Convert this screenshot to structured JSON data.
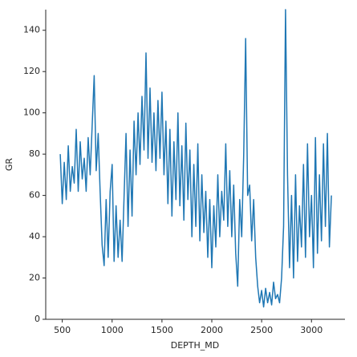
{
  "chart_data": {
    "type": "line",
    "xlabel": "DEPTH_MD",
    "ylabel": "GR",
    "xlim": [
      334,
      3336
    ],
    "ylim": [
      0,
      150
    ],
    "xticks": [
      500,
      1000,
      1500,
      2000,
      2500,
      3000
    ],
    "yticks": [
      0,
      20,
      40,
      60,
      80,
      100,
      120,
      140
    ],
    "grid": false,
    "series": [
      {
        "color": "#1f77b4",
        "x": [
          480,
          500,
          520,
          540,
          560,
          580,
          600,
          620,
          640,
          660,
          680,
          700,
          720,
          740,
          760,
          780,
          800,
          820,
          840,
          860,
          880,
          900,
          920,
          940,
          960,
          980,
          1000,
          1020,
          1040,
          1060,
          1080,
          1100,
          1120,
          1140,
          1160,
          1180,
          1200,
          1220,
          1240,
          1260,
          1280,
          1300,
          1320,
          1340,
          1360,
          1380,
          1400,
          1420,
          1440,
          1460,
          1480,
          1500,
          1520,
          1540,
          1560,
          1580,
          1600,
          1620,
          1640,
          1660,
          1680,
          1700,
          1720,
          1740,
          1760,
          1780,
          1800,
          1820,
          1840,
          1860,
          1880,
          1900,
          1920,
          1940,
          1960,
          1980,
          2000,
          2020,
          2040,
          2060,
          2080,
          2100,
          2120,
          2140,
          2160,
          2180,
          2200,
          2220,
          2240,
          2260,
          2280,
          2300,
          2320,
          2340,
          2360,
          2380,
          2400,
          2420,
          2440,
          2460,
          2480,
          2500,
          2520,
          2540,
          2560,
          2580,
          2600,
          2620,
          2640,
          2660,
          2680,
          2700,
          2720,
          2740,
          2760,
          2780,
          2800,
          2820,
          2840,
          2860,
          2880,
          2900,
          2920,
          2940,
          2960,
          2980,
          3000,
          3020,
          3040,
          3060,
          3080,
          3100,
          3120,
          3140,
          3160,
          3180,
          3200
        ],
        "values": [
          80,
          56,
          76,
          58,
          84,
          62,
          74,
          66,
          92,
          62,
          86,
          68,
          78,
          62,
          88,
          70,
          94,
          118,
          72,
          90,
          62,
          36,
          26,
          58,
          30,
          62,
          75,
          28,
          55,
          30,
          48,
          28,
          60,
          90,
          45,
          82,
          50,
          96,
          70,
          100,
          75,
          108,
          82,
          129,
          78,
          112,
          76,
          100,
          72,
          106,
          78,
          110,
          70,
          96,
          56,
          92,
          50,
          86,
          58,
          100,
          55,
          84,
          48,
          95,
          58,
          82,
          40,
          75,
          45,
          85,
          38,
          70,
          42,
          62,
          30,
          58,
          25,
          55,
          35,
          70,
          40,
          62,
          48,
          85,
          45,
          72,
          40,
          65,
          32,
          16,
          58,
          40,
          80,
          136,
          60,
          65,
          38,
          58,
          30,
          16,
          8,
          14,
          6,
          15,
          8,
          13,
          7,
          18,
          10,
          12,
          8,
          20,
          45,
          150,
          70,
          25,
          60,
          20,
          70,
          28,
          55,
          35,
          75,
          30,
          85,
          40,
          60,
          25,
          88,
          32,
          70,
          38,
          85,
          45,
          90,
          35,
          60
        ]
      }
    ]
  }
}
